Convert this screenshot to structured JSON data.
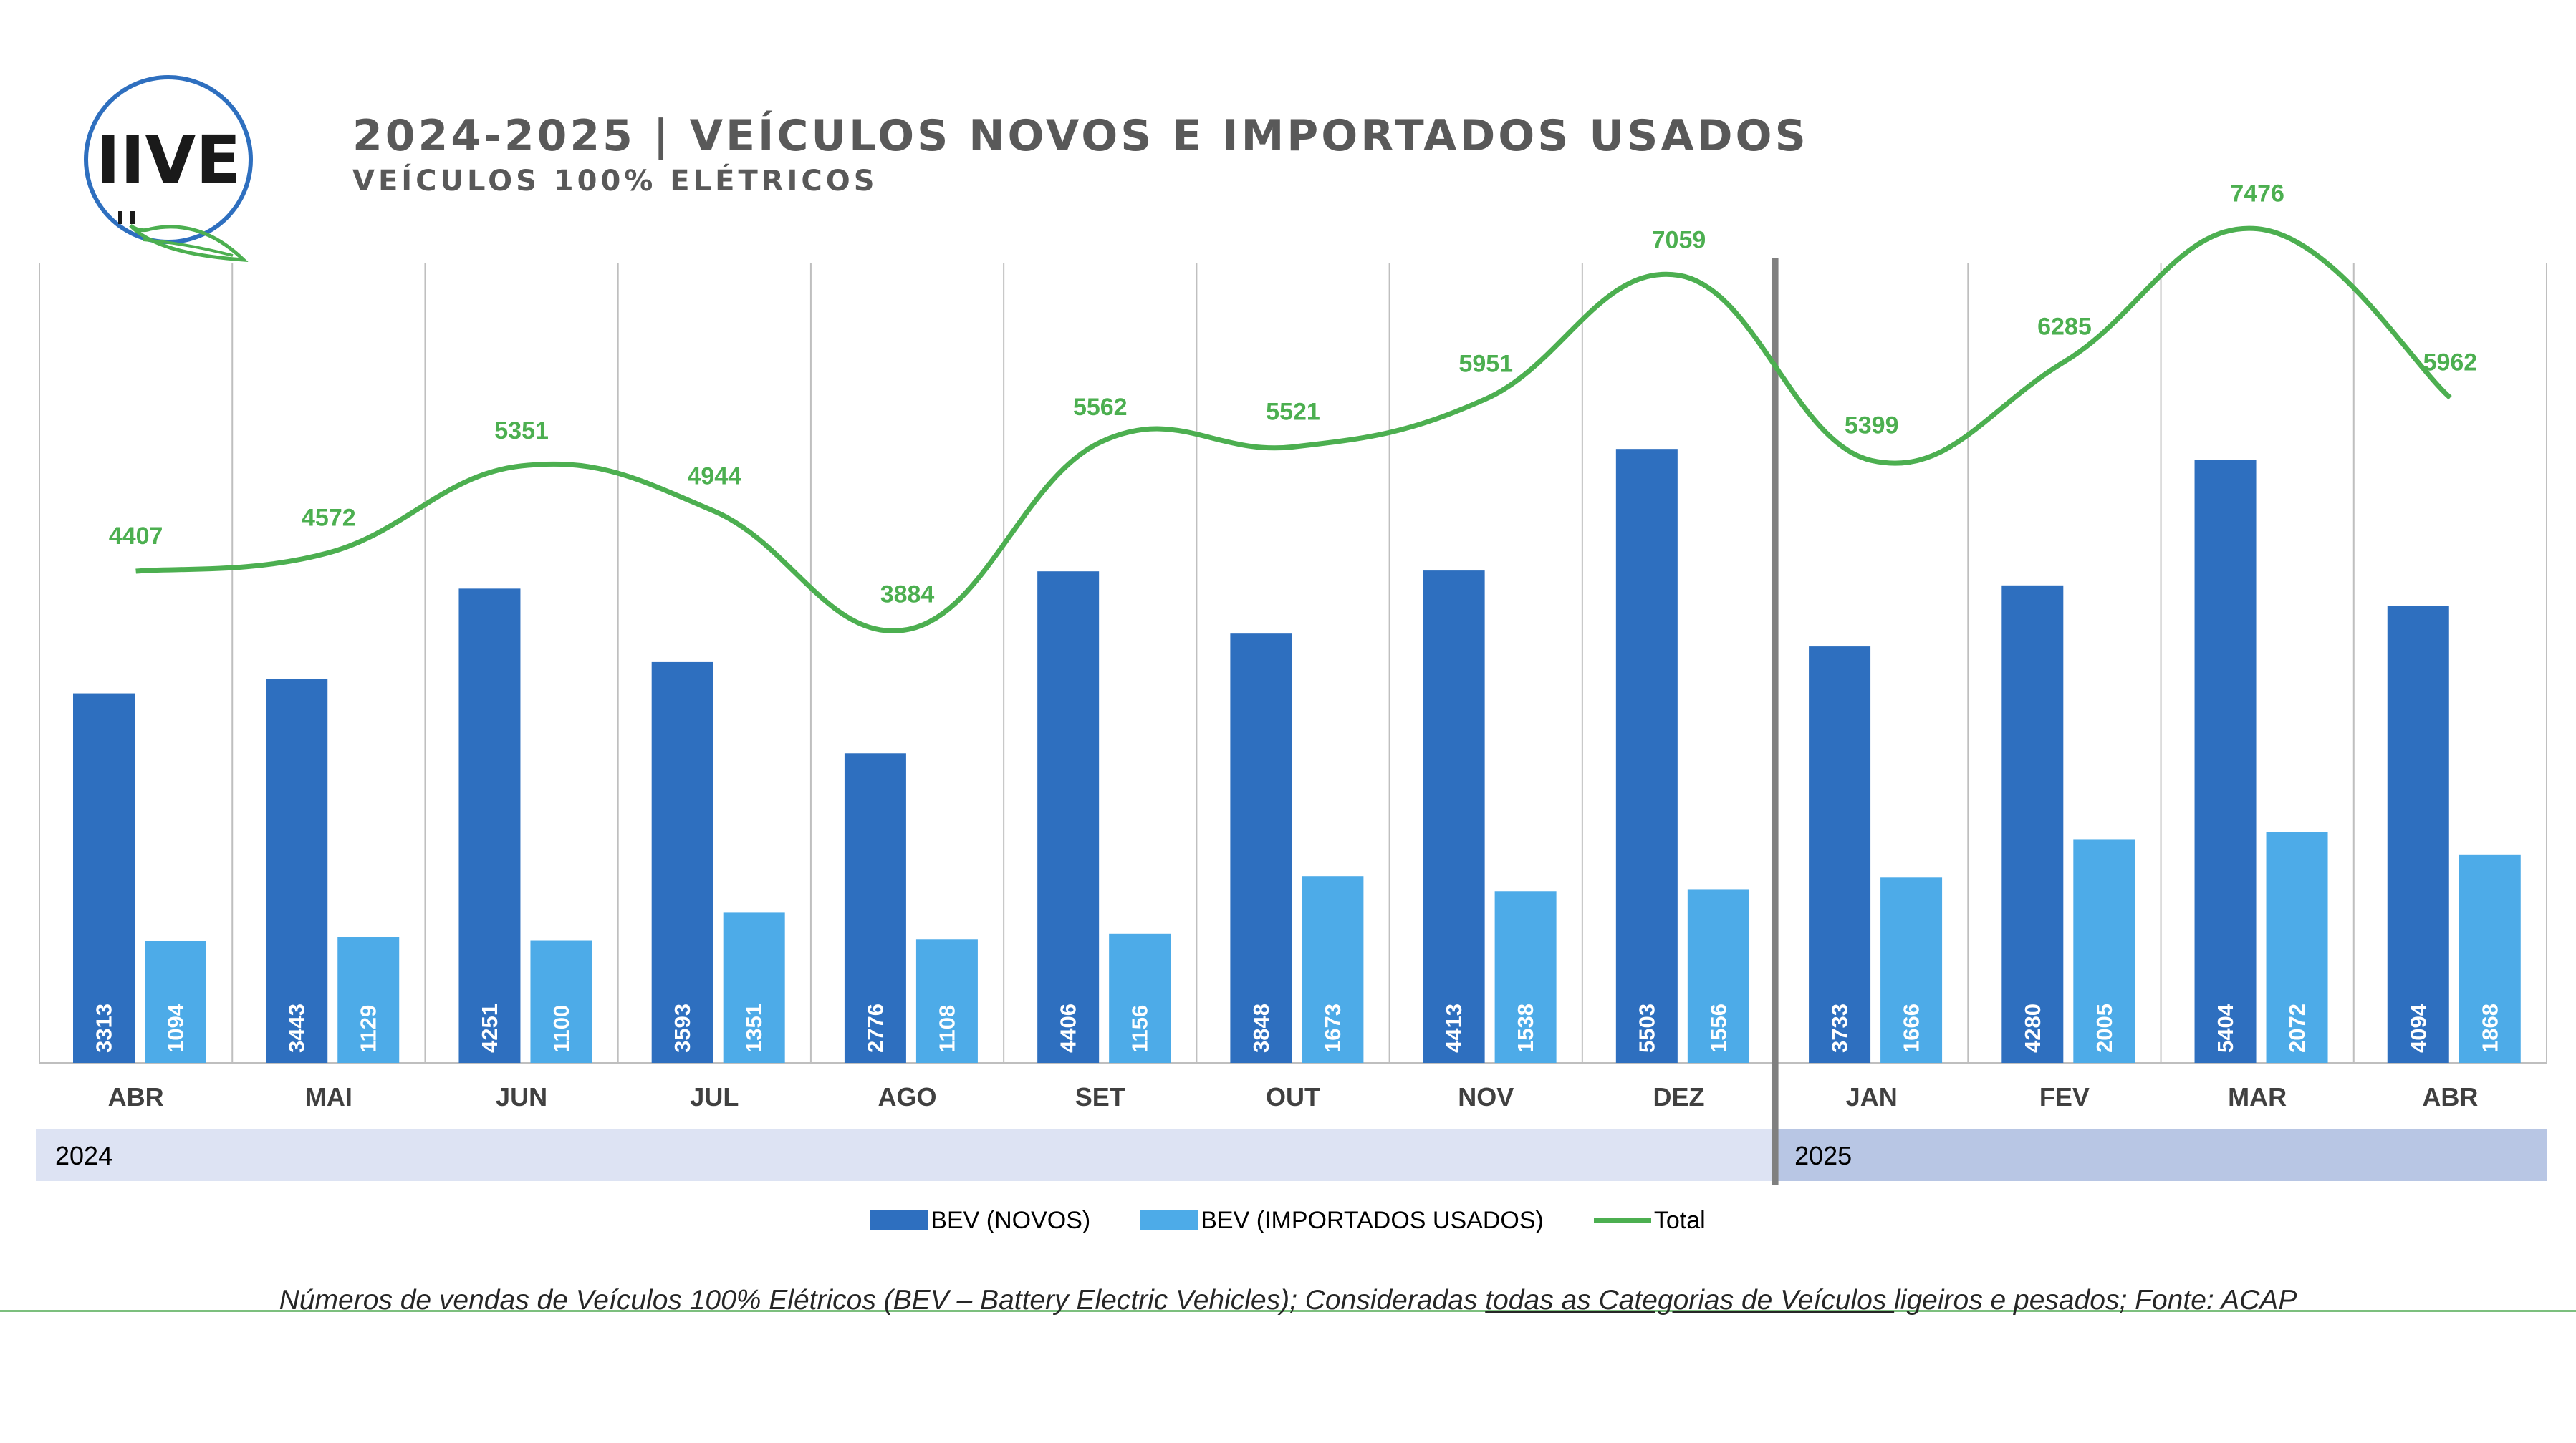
{
  "header": {
    "logo_text": "IIVE",
    "title": "2024-2025 | VEÍCULOS NOVOS E IMPORTADOS USADOS",
    "subtitle": "VEÍCULOS 100% ELÉTRICOS"
  },
  "colors": {
    "novos": "#2e6fbf",
    "importados": "#4dabe8",
    "total": "#4caf50",
    "year_2024_band": "#dde3f3",
    "year_2025_band": "#b8c6e4",
    "grid": "#bfbfbf",
    "divider": "#808080"
  },
  "chart_data": {
    "type": "bar",
    "categories": [
      "ABR",
      "MAI",
      "JUN",
      "JUL",
      "AGO",
      "SET",
      "OUT",
      "NOV",
      "DEZ",
      "JAN",
      "FEV",
      "MAR",
      "ABR"
    ],
    "years": [
      {
        "label": "2024",
        "start_index": 0,
        "end_index": 8
      },
      {
        "label": "2025",
        "start_index": 9,
        "end_index": 12
      }
    ],
    "series": [
      {
        "name": "BEV (NOVOS)",
        "type": "bar",
        "values": [
          3313,
          3443,
          4251,
          3593,
          2776,
          4406,
          3848,
          4413,
          5503,
          3733,
          4280,
          5404,
          4094
        ]
      },
      {
        "name": "BEV (IMPORTADOS USADOS)",
        "type": "bar",
        "values": [
          1094,
          1129,
          1100,
          1351,
          1108,
          1156,
          1673,
          1538,
          1556,
          1666,
          2005,
          2072,
          1868
        ]
      },
      {
        "name": "Total",
        "type": "line",
        "values": [
          4407,
          4572,
          5351,
          4944,
          3884,
          5562,
          5521,
          5951,
          7059,
          5399,
          6285,
          7476,
          5962
        ]
      }
    ],
    "ylim": [
      0,
      8500
    ],
    "grid": "vertical category separators",
    "legend_position": "bottom"
  },
  "footnote": {
    "before": "Números de vendas de Veículos 100% Elétricos (BEV – Battery Electric Vehicles); Consideradas ",
    "underlined": "todas as Categorias de Veículos ",
    "after": "ligeiros e pesados; Fonte: ACAP"
  }
}
